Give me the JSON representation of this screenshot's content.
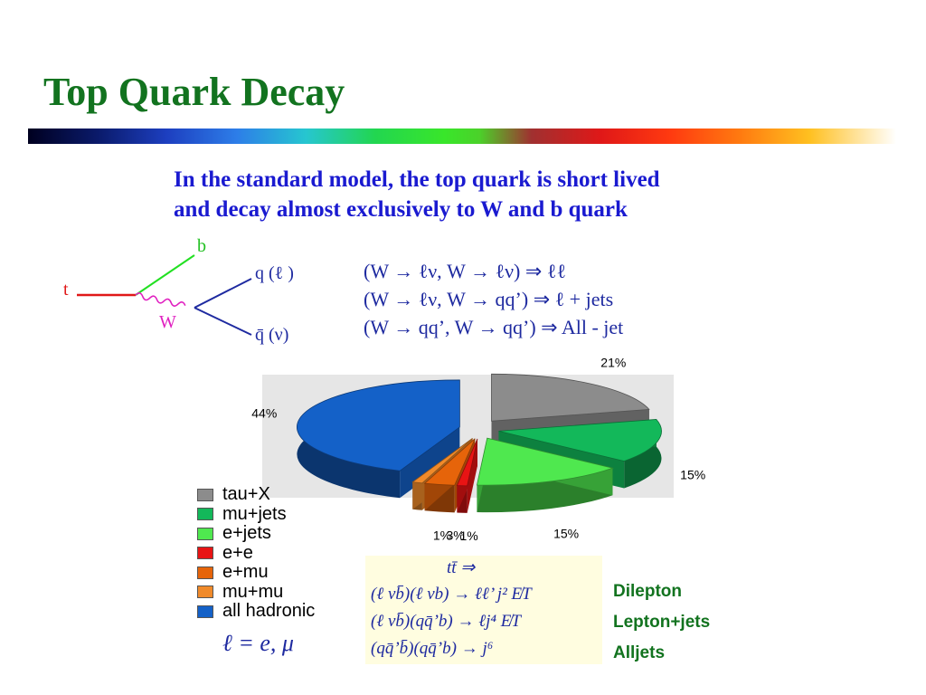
{
  "slide": {
    "title": "Top Quark Decay",
    "intro_lines": [
      "In the standard model, the top quark is short lived",
      "and decay almost exclusively to W and b quark"
    ]
  },
  "feynman": {
    "t": "t",
    "b": "b",
    "W": "W",
    "q": "q (ℓ )",
    "qbar": "q̄ (ν)"
  },
  "decay_modes": [
    "(W → ℓν, W → ℓν) ⇒ ℓℓ",
    "(W → ℓν, W → qq’) ⇒ ℓ + jets",
    "(W → qq’, W → qq’) ⇒ All - jet"
  ],
  "chart_data": {
    "type": "pie",
    "categories": [
      "tau+X",
      "mu+jets",
      "e+jets",
      "e+e",
      "e+mu",
      "mu+mu",
      "all  hadronic"
    ],
    "values": [
      21,
      15,
      15,
      1,
      3,
      1,
      44
    ],
    "labels": [
      "21%",
      "15%",
      "15%",
      "1%",
      "3%",
      "1%",
      "44%"
    ],
    "colors": [
      "#8c8c8c",
      "#13b85a",
      "#4fe84f",
      "#e81414",
      "#e6640a",
      "#f08a2a",
      "#1461c8"
    ],
    "legend": "bottom-left"
  },
  "legend_items": [
    {
      "label": "tau+X",
      "color": "#8c8c8c"
    },
    {
      "label": "mu+jets",
      "color": "#13b85a"
    },
    {
      "label": "e+jets",
      "color": "#4fe84f"
    },
    {
      "label": "e+e",
      "color": "#e81414"
    },
    {
      "label": "e+mu",
      "color": "#e6640a"
    },
    {
      "label": "mu+mu",
      "color": "#f08a2a"
    },
    {
      "label": "all  hadronic",
      "color": "#1461c8"
    }
  ],
  "lepton_def": "ℓ = e, μ",
  "formulas": {
    "header": "tt̄ ⇒",
    "lines": [
      "(ℓ νb̄)(ℓ νb) → ℓℓ’ j² E̸T",
      "(ℓ νb̄)(qq̄’b) → ℓj⁴ E̸T",
      "(qq̄’b̄)(qq̄’b) → j⁶"
    ]
  },
  "channel_labels": [
    "Dilepton",
    "Lepton+jets",
    "Alljets"
  ]
}
